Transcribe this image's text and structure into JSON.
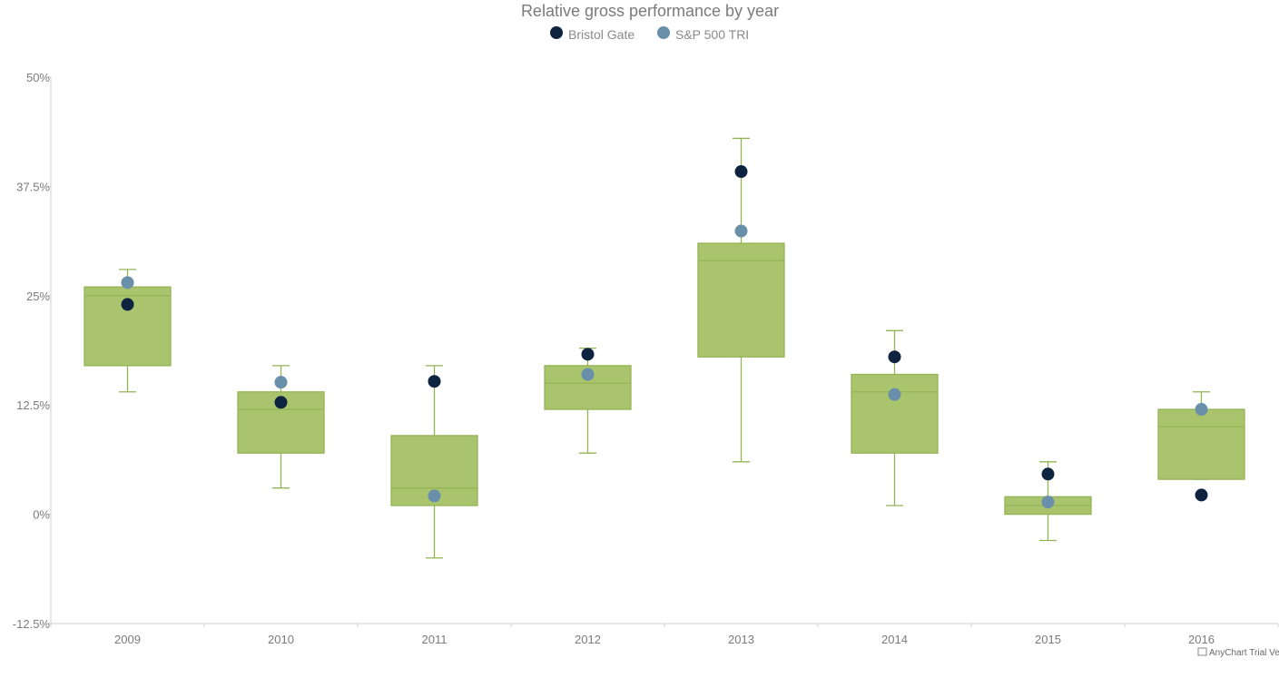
{
  "chart_data": {
    "type": "box",
    "title": "Relative gross performance by year",
    "xlabel": "",
    "ylabel": "",
    "ylim": [
      -12.5,
      50
    ],
    "y_ticks": [
      -12.5,
      0,
      12.5,
      25,
      37.5,
      50
    ],
    "y_tick_labels": [
      "-12.5%",
      "0%",
      "12.5%",
      "25%",
      "37.5%",
      "50%"
    ],
    "grid": false,
    "legend_position": "top-center",
    "categories": [
      "2009",
      "2010",
      "2011",
      "2012",
      "2013",
      "2014",
      "2015",
      "2016"
    ],
    "boxes": [
      {
        "low": 14,
        "q1": 17,
        "median": 25,
        "q3": 26,
        "high": 28
      },
      {
        "low": 3,
        "q1": 7,
        "median": 12,
        "q3": 14,
        "high": 17
      },
      {
        "low": -5,
        "q1": 1,
        "median": 3,
        "q3": 9,
        "high": 17
      },
      {
        "low": 7,
        "q1": 12,
        "median": 15,
        "q3": 17,
        "high": 19
      },
      {
        "low": 6,
        "q1": 18,
        "median": 29,
        "q3": 31,
        "high": 43
      },
      {
        "low": 1,
        "q1": 7,
        "median": 14,
        "q3": 16,
        "high": 21
      },
      {
        "low": -3,
        "q1": 0,
        "median": 1,
        "q3": 2,
        "high": 6
      },
      {
        "low": 4,
        "q1": 4,
        "median": 10,
        "q3": 12,
        "high": 14
      }
    ],
    "series": [
      {
        "name": "Bristol Gate",
        "color": "#0e2340",
        "values": [
          24.0,
          12.8,
          15.2,
          18.3,
          39.2,
          18.0,
          4.6,
          2.2
        ]
      },
      {
        "name": "S&P 500 TRI",
        "color": "#6a8fab",
        "values": [
          26.5,
          15.1,
          2.1,
          16.0,
          32.4,
          13.7,
          1.4,
          12.0
        ]
      }
    ],
    "box_color": "#a9c46d",
    "box_stroke": "#93b454",
    "credit": "AnyChart Trial Version"
  }
}
